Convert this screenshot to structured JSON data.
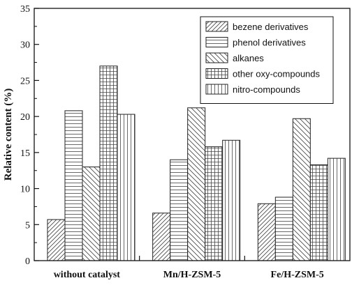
{
  "chart_data": {
    "type": "bar",
    "title": "",
    "xlabel": "",
    "ylabel": "Relative content (%)",
    "ylim": [
      0,
      35
    ],
    "yticks": [
      0,
      5,
      10,
      15,
      20,
      25,
      30,
      35
    ],
    "categories": [
      "without catalyst",
      "Mn/H-ZSM-5",
      "Fe/H-ZSM-5"
    ],
    "legend_position": "top-right",
    "grid": false,
    "series": [
      {
        "name": "bezene derivatives",
        "pattern": "diagonal-right",
        "values": [
          5.7,
          6.6,
          7.9
        ]
      },
      {
        "name": "phenol derivatives",
        "pattern": "horizontal",
        "values": [
          20.8,
          14.0,
          8.8
        ]
      },
      {
        "name": "alkanes",
        "pattern": "diagonal-left",
        "values": [
          13.0,
          21.2,
          19.7
        ]
      },
      {
        "name": "other oxy-compounds",
        "pattern": "grid",
        "values": [
          27.0,
          15.8,
          13.3
        ]
      },
      {
        "name": "nitro-compounds",
        "pattern": "vertical",
        "values": [
          20.3,
          16.7,
          14.2
        ]
      }
    ]
  }
}
